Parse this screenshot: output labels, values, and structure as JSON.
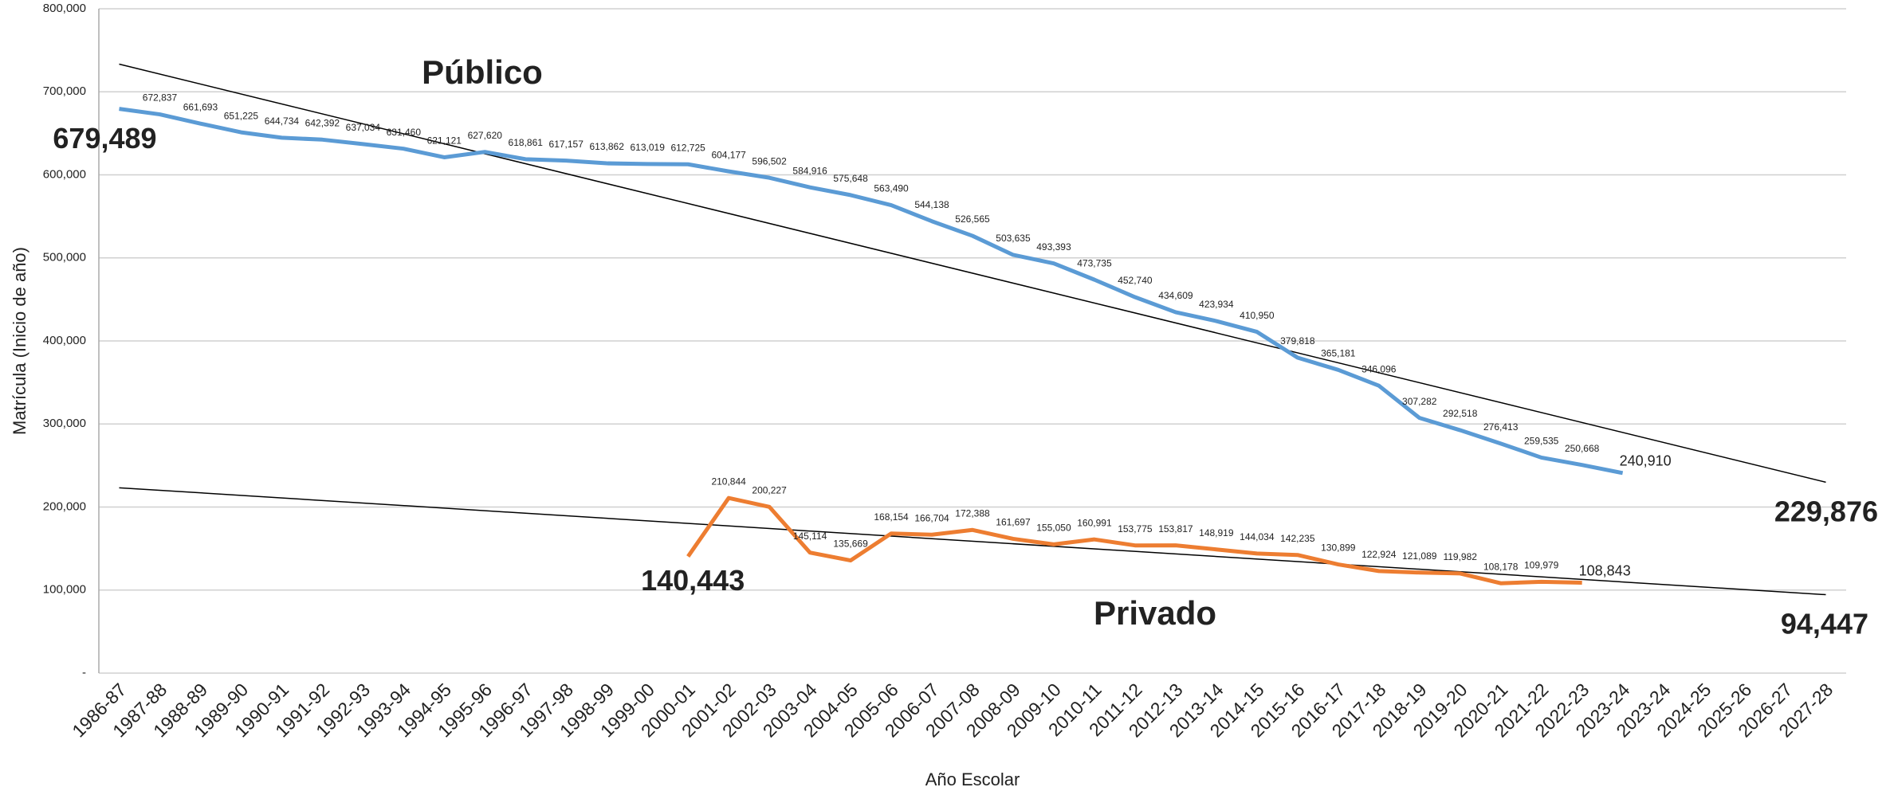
{
  "chart_data": {
    "type": "line",
    "x_label": "Año Escolar",
    "y_label": "Matrícula (Inicio de año)",
    "categories": [
      "1986-87",
      "1987-88",
      "1988-89",
      "1989-90",
      "1990-91",
      "1991-92",
      "1992-93",
      "1993-94",
      "1994-95",
      "1995-96",
      "1996-97",
      "1997-98",
      "1998-99",
      "1999-00",
      "2000-01",
      "2001-02",
      "2002-03",
      "2003-04",
      "2004-05",
      "2005-06",
      "2006-07",
      "2007-08",
      "2008-09",
      "2009-10",
      "2010-11",
      "2011-12",
      "2012-13",
      "2013-14",
      "2014-15",
      "2015-16",
      "2016-17",
      "2017-18",
      "2018-19",
      "2019-20",
      "2020-21",
      "2021-22",
      "2022-23",
      "2023-24",
      "2023-24",
      "2024-25",
      "2025-26",
      "2026-27",
      "2027-28"
    ],
    "ylim": [
      0,
      800000
    ],
    "yticks": [
      {
        "value": 0,
        "label": "-"
      },
      {
        "value": 100000,
        "label": "100,000"
      },
      {
        "value": 200000,
        "label": "200,000"
      },
      {
        "value": 300000,
        "label": "300,000"
      },
      {
        "value": 400000,
        "label": "400,000"
      },
      {
        "value": 500000,
        "label": "500,000"
      },
      {
        "value": 600000,
        "label": "600,000"
      },
      {
        "value": 700000,
        "label": "700,000"
      },
      {
        "value": 800000,
        "label": "800,000"
      }
    ],
    "grid": true,
    "series": [
      {
        "name": "Público",
        "color": "#5b9bd5",
        "name_color": "#2e5e8e",
        "values": [
          679489,
          672837,
          661693,
          651225,
          644734,
          642392,
          637034,
          631460,
          621121,
          627620,
          618861,
          617157,
          613862,
          613019,
          612725,
          604177,
          596502,
          584916,
          575648,
          563490,
          544138,
          526565,
          503635,
          493393,
          473735,
          452740,
          434609,
          423934,
          410950,
          379818,
          365181,
          346096,
          307282,
          292518,
          276413,
          259535,
          250668,
          240910,
          null,
          null,
          null,
          null,
          null
        ],
        "value_labels": [
          "679,489",
          "672,837",
          "661,693",
          "651,225",
          "644,734",
          "642,392",
          "637,034",
          "631,460",
          "621,121",
          "627,620",
          "618,861",
          "617,157",
          "613,862",
          "613,019",
          "612,725",
          "604,177",
          "596,502",
          "584,916",
          "575,648",
          "563,490",
          "544,138",
          "526,565",
          "503,635",
          "493,393",
          "473,735",
          "452,740",
          "434,609",
          "423,934",
          "410,950",
          "379,818",
          "365,181",
          "346,096",
          "307,282",
          "292,518",
          "276,413",
          "259,535",
          "250,668",
          "240,910",
          null,
          null,
          null,
          null,
          null
        ]
      },
      {
        "name": "Privado",
        "color": "#ed7d31",
        "name_color": "#a5521e",
        "values": [
          null,
          null,
          null,
          null,
          null,
          null,
          null,
          null,
          null,
          null,
          null,
          null,
          null,
          null,
          140443,
          210844,
          200227,
          145114,
          135669,
          168154,
          166704,
          172388,
          161697,
          155050,
          160991,
          153775,
          153817,
          148919,
          144034,
          142235,
          130899,
          122924,
          121089,
          119982,
          108178,
          109979,
          108843,
          null,
          null,
          null,
          null,
          null,
          null
        ],
        "value_labels": [
          null,
          null,
          null,
          null,
          null,
          null,
          null,
          null,
          null,
          null,
          null,
          null,
          null,
          null,
          "140,443",
          "210,844",
          "200,227",
          "145,114",
          "135,669",
          "168,154",
          "166,704",
          "172,388",
          "161,697",
          "155,050",
          "160,991",
          "153,775",
          "153,817",
          "148,919",
          "144,034",
          "142,235",
          "130,899",
          "122,924",
          "121,089",
          "119,982",
          "108,178",
          "109,979",
          "108,843",
          null,
          null,
          null,
          null,
          null,
          null
        ]
      }
    ],
    "trendlines": [
      {
        "start": 733300,
        "end": 229876,
        "end_label": "229,876",
        "color": "#000000"
      },
      {
        "start": 223200,
        "end": 94447,
        "end_label": "94,447",
        "color": "#000000"
      }
    ]
  }
}
